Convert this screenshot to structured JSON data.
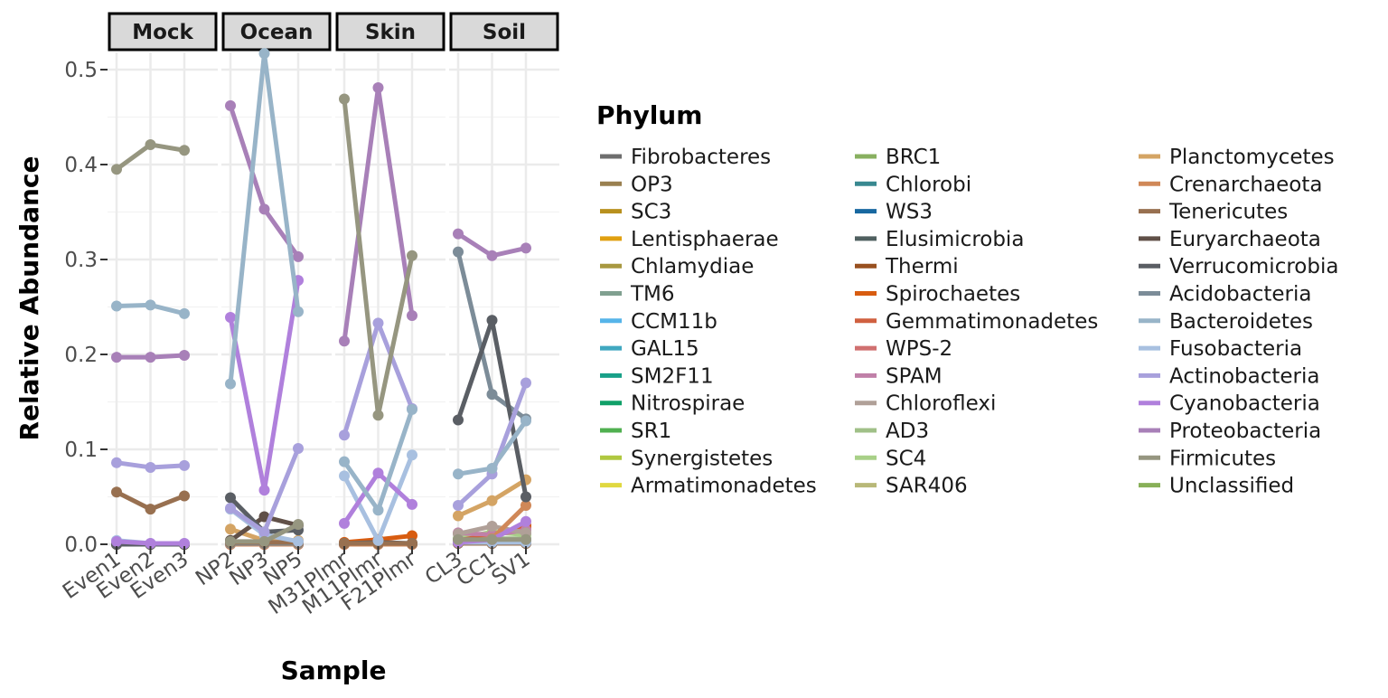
{
  "chart_data": {
    "type": "line",
    "xlabel": "Sample",
    "ylabel": "Relative Abundance",
    "ylim": [
      0,
      0.52
    ],
    "yticks": [
      "0.0",
      "0.1",
      "0.2",
      "0.3",
      "0.4",
      "0.5"
    ],
    "grid": true,
    "legend_title": "Phylum",
    "legend_position": "right",
    "facets": [
      {
        "label": "Mock",
        "samples": [
          "Even1",
          "Even2",
          "Even3"
        ]
      },
      {
        "label": "Ocean",
        "samples": [
          "NP2",
          "NP3",
          "NP5"
        ]
      },
      {
        "label": "Skin",
        "samples": [
          "M31Plmr",
          "M11Plmr",
          "F21Plmr"
        ]
      },
      {
        "label": "Soil",
        "samples": [
          "CL3",
          "CC1",
          "SV1"
        ]
      }
    ],
    "legend": [
      {
        "name": "Fibrobacteres",
        "color": "#6e6e6e"
      },
      {
        "name": "OP3",
        "color": "#9a8050"
      },
      {
        "name": "SC3",
        "color": "#b8901e"
      },
      {
        "name": "Lentisphaerae",
        "color": "#e0a010"
      },
      {
        "name": "Chlamydiae",
        "color": "#a89840"
      },
      {
        "name": "TM6",
        "color": "#80a090"
      },
      {
        "name": "CCM11b",
        "color": "#56b4e9"
      },
      {
        "name": "GAL15",
        "color": "#40a8c0"
      },
      {
        "name": "SM2F11",
        "color": "#18a088"
      },
      {
        "name": "Nitrospirae",
        "color": "#10a068"
      },
      {
        "name": "SR1",
        "color": "#50b050"
      },
      {
        "name": "Synergistetes",
        "color": "#b0c840"
      },
      {
        "name": "Armatimonadetes",
        "color": "#e0d840"
      },
      {
        "name": "BRC1",
        "color": "#88b060"
      },
      {
        "name": "Chlorobi",
        "color": "#388890"
      },
      {
        "name": "WS3",
        "color": "#1868a0"
      },
      {
        "name": "Elusimicrobia",
        "color": "#506060"
      },
      {
        "name": "Thermi",
        "color": "#985020"
      },
      {
        "name": "Spirochaetes",
        "color": "#d85c10"
      },
      {
        "name": "Gemmatimonadetes",
        "color": "#d06040"
      },
      {
        "name": "WPS-2",
        "color": "#d07070"
      },
      {
        "name": "SPAM",
        "color": "#c080a8"
      },
      {
        "name": "Chloroflexi",
        "color": "#b0a098"
      },
      {
        "name": "AD3",
        "color": "#a0c088"
      },
      {
        "name": "SC4",
        "color": "#a8d088"
      },
      {
        "name": "SAR406",
        "color": "#b8b878"
      },
      {
        "name": "Planctomycetes",
        "color": "#d4a464"
      },
      {
        "name": "Crenarchaeota",
        "color": "#d08858"
      },
      {
        "name": "Tenericutes",
        "color": "#987050"
      },
      {
        "name": "Euryarchaeota",
        "color": "#605048"
      },
      {
        "name": "Verrucomicrobia",
        "color": "#5a5e64"
      },
      {
        "name": "Acidobacteria",
        "color": "#7c8c98"
      },
      {
        "name": "Bacteroidetes",
        "color": "#98b4c8"
      },
      {
        "name": "Fusobacteria",
        "color": "#a8c0e0"
      },
      {
        "name": "Actinobacteria",
        "color": "#a8a0dc"
      },
      {
        "name": "Cyanobacteria",
        "color": "#b080dc"
      },
      {
        "name": "Proteobacteria",
        "color": "#a880b8"
      },
      {
        "name": "Firmicutes",
        "color": "#969680"
      },
      {
        "name": "Unclassified",
        "color": "#88b058"
      }
    ],
    "series": [
      {
        "name": "Firmicutes",
        "values": {
          "Mock": [
            0.395,
            0.421,
            0.415
          ],
          "Ocean": [
            0.003,
            0.003,
            0.021
          ],
          "Skin": [
            0.469,
            0.136,
            0.304
          ],
          "Soil": [
            0.005,
            0.005,
            0.005
          ]
        }
      },
      {
        "name": "Bacteroidetes",
        "values": {
          "Mock": [
            0.251,
            0.252,
            0.243
          ],
          "Ocean": [
            0.169,
            0.517,
            0.245
          ],
          "Skin": [
            0.087,
            0.036,
            0.142
          ],
          "Soil": [
            0.074,
            0.08,
            0.13
          ]
        }
      },
      {
        "name": "Proteobacteria",
        "values": {
          "Mock": [
            0.197,
            0.197,
            0.199
          ],
          "Ocean": [
            0.462,
            0.353,
            0.303
          ],
          "Skin": [
            0.214,
            0.481,
            0.241
          ],
          "Soil": [
            0.327,
            0.304,
            0.312
          ]
        }
      },
      {
        "name": "Actinobacteria",
        "values": {
          "Mock": [
            0.086,
            0.081,
            0.083
          ],
          "Ocean": [
            0.038,
            0.013,
            0.101
          ],
          "Skin": [
            0.115,
            0.233,
            0.143
          ],
          "Soil": [
            0.041,
            0.074,
            0.17
          ]
        }
      },
      {
        "name": "Cyanobacteria",
        "values": {
          "Mock": [
            0.003,
            0.001,
            0.001
          ],
          "Ocean": [
            0.239,
            0.057,
            0.278
          ],
          "Skin": [
            0.022,
            0.075,
            0.042
          ],
          "Soil": [
            0.002,
            0.005,
            0.024
          ]
        }
      },
      {
        "name": "Fusobacteria",
        "values": {
          "Mock": [
            0.004,
            0.001,
            0.001
          ],
          "Ocean": [
            0.037,
            0.01,
            0.003
          ],
          "Skin": [
            0.072,
            0.004,
            0.094
          ],
          "Soil": [
            0.002,
            0.002,
            0.002
          ]
        }
      },
      {
        "name": "Tenericutes",
        "values": {
          "Mock": [
            0.055,
            0.037,
            0.051
          ],
          "Ocean": [
            0.002,
            0.002,
            0.002
          ],
          "Skin": [
            0.001,
            0.001,
            0.001
          ],
          "Soil": [
            0.001,
            0.001,
            0.001
          ]
        }
      },
      {
        "name": "Verrucomicrobia",
        "values": {
          "Mock": [
            0.0,
            0.0,
            0.0
          ],
          "Ocean": [
            0.049,
            0.013,
            0.015
          ],
          "Skin": [
            0.001,
            0.002,
            0.001
          ],
          "Soil": [
            0.131,
            0.236,
            0.05
          ]
        }
      },
      {
        "name": "Euryarchaeota",
        "values": {
          "Mock": [
            0.0,
            0.0,
            0.0
          ],
          "Ocean": [
            0.004,
            0.029,
            0.02
          ],
          "Skin": [
            0.001,
            0.001,
            0.001
          ],
          "Soil": [
            0.001,
            0.001,
            0.001
          ]
        }
      },
      {
        "name": "Planctomycetes",
        "values": {
          "Mock": [
            0.0,
            0.0,
            0.0
          ],
          "Ocean": [
            0.016,
            0.004,
            0.004
          ],
          "Skin": [
            0.001,
            0.001,
            0.001
          ],
          "Soil": [
            0.03,
            0.046,
            0.068
          ]
        }
      },
      {
        "name": "Acidobacteria",
        "values": {
          "Mock": [
            0.0,
            0.0,
            0.0
          ],
          "Ocean": [
            0.001,
            0.001,
            0.001
          ],
          "Skin": [
            0.001,
            0.001,
            0.001
          ],
          "Soil": [
            0.308,
            0.158,
            0.132
          ]
        }
      },
      {
        "name": "Crenarchaeota",
        "values": {
          "Mock": [
            0.0,
            0.0,
            0.0
          ],
          "Ocean": [
            0.0,
            0.0,
            0.0
          ],
          "Skin": [
            0.0,
            0.0,
            0.0
          ],
          "Soil": [
            0.003,
            0.006,
            0.041
          ]
        }
      },
      {
        "name": "Chloroflexi",
        "values": {
          "Mock": [
            0.0,
            0.0,
            0.0
          ],
          "Ocean": [
            0.001,
            0.001,
            0.001
          ],
          "Skin": [
            0.001,
            0.001,
            0.001
          ],
          "Soil": [
            0.011,
            0.019,
            0.012
          ]
        }
      },
      {
        "name": "SPAM",
        "values": {
          "Mock": [
            0.0,
            0.0,
            0.0
          ],
          "Ocean": [
            0.0,
            0.0,
            0.0
          ],
          "Skin": [
            0.0,
            0.0,
            0.0
          ],
          "Soil": [
            0.012,
            0.01,
            0.015
          ]
        }
      },
      {
        "name": "Spirochaetes",
        "values": {
          "Mock": [
            0.0,
            0.0,
            0.0
          ],
          "Ocean": [
            0.001,
            0.001,
            0.001
          ],
          "Skin": [
            0.002,
            0.005,
            0.009
          ],
          "Soil": [
            0.002,
            0.008,
            0.02
          ]
        }
      },
      {
        "name": "Gemmatimonadetes",
        "values": {
          "Mock": [
            0.0,
            0.0,
            0.0
          ],
          "Ocean": [
            0.0,
            0.0,
            0.0
          ],
          "Skin": [
            0.0,
            0.0,
            0.0
          ],
          "Soil": [
            0.004,
            0.01,
            0.018
          ]
        }
      },
      {
        "name": "SC4",
        "values": {
          "Mock": [
            0.0,
            0.0,
            0.0
          ],
          "Ocean": [
            0.0,
            0.0,
            0.0
          ],
          "Skin": [
            0.0,
            0.0,
            0.0
          ],
          "Soil": [
            0.006,
            0.013,
            0.01
          ]
        }
      },
      {
        "name": "AD3",
        "values": {
          "Mock": [
            0.0,
            0.0,
            0.0
          ],
          "Ocean": [
            0.0,
            0.0,
            0.0
          ],
          "Skin": [
            0.0,
            0.0,
            0.0
          ],
          "Soil": [
            0.004,
            0.006,
            0.006
          ]
        }
      },
      {
        "name": "Unclassified",
        "values": {
          "Mock": [
            0.0,
            0.0,
            0.0
          ],
          "Ocean": [
            0.001,
            0.001,
            0.001
          ],
          "Skin": [
            0.001,
            0.001,
            0.001
          ],
          "Soil": [
            0.002,
            0.002,
            0.003
          ]
        }
      }
    ]
  }
}
